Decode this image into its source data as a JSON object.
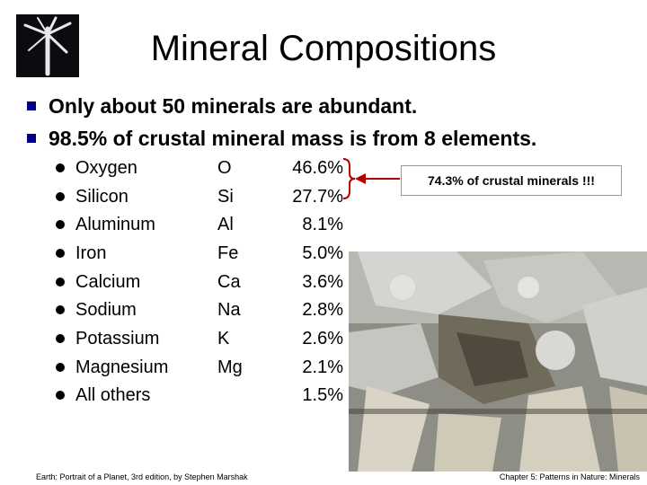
{
  "title": "Mineral Compositions",
  "bullets": [
    "Only about 50 minerals are abundant.",
    "98.5% of crustal mineral mass is from 8 elements."
  ],
  "elements": [
    {
      "name": "Oxygen",
      "symbol": "O",
      "percent": "46.6%"
    },
    {
      "name": "Silicon",
      "symbol": "Si",
      "percent": "27.7%"
    },
    {
      "name": "Aluminum",
      "symbol": "Al",
      "percent": "8.1%"
    },
    {
      "name": "Iron",
      "symbol": "Fe",
      "percent": "5.0%"
    },
    {
      "name": "Calcium",
      "symbol": "Ca",
      "percent": "3.6%"
    },
    {
      "name": "Sodium",
      "symbol": "Na",
      "percent": "2.8%"
    },
    {
      "name": "Potassium",
      "symbol": "K",
      "percent": "2.6%"
    },
    {
      "name": "Magnesium",
      "symbol": "Mg",
      "percent": "2.1%"
    },
    {
      "name": "All others",
      "symbol": "",
      "percent": "1.5%"
    }
  ],
  "callout": "74.3% of crustal minerals !!!",
  "footer": {
    "left": "Earth: Portrait of a Planet, 3rd edition, by Stephen Marshak",
    "right": "Chapter 5: Patterns in Nature: Minerals"
  },
  "colors": {
    "bullet_square": "#00008b",
    "brace": "#b00000",
    "arrow": "#b00000"
  }
}
